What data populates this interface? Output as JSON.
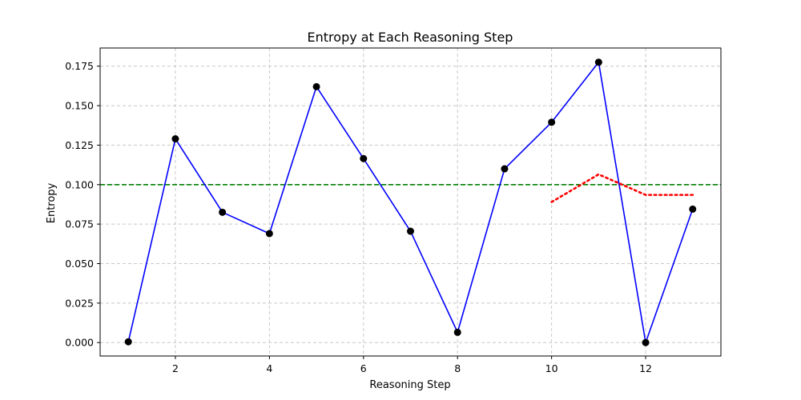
{
  "chart_data": {
    "type": "line",
    "title": "Entropy at Each Reasoning Step",
    "xlabel": "Reasoning Step",
    "ylabel": "Entropy",
    "xlim": [
      0.4,
      13.6
    ],
    "ylim": [
      -0.0085,
      0.1865
    ],
    "x_ticks": [
      2,
      4,
      6,
      8,
      10,
      12
    ],
    "y_ticks": [
      0.0,
      0.025,
      0.05,
      0.075,
      0.1,
      0.125,
      0.15,
      0.175
    ],
    "x_tick_labels": [
      "2",
      "4",
      "6",
      "8",
      "10",
      "12"
    ],
    "y_tick_labels": [
      "0.000",
      "0.025",
      "0.050",
      "0.075",
      "0.100",
      "0.125",
      "0.150",
      "0.175"
    ],
    "grid": true,
    "series": [
      {
        "style": "solid line with circle markers",
        "color": "#0000ff",
        "marker_color": "#000000",
        "x": [
          1,
          2,
          3,
          4,
          5,
          6,
          7,
          8,
          9,
          10,
          11,
          12,
          13
        ],
        "values": [
          0.0005,
          0.129,
          0.0825,
          0.069,
          0.162,
          0.1165,
          0.0705,
          0.0065,
          0.11,
          0.1395,
          0.1775,
          0.0,
          0.0845
        ]
      },
      {
        "style": "dotted line",
        "color": "#ff0000",
        "x": [
          10,
          11,
          12,
          13
        ],
        "values": [
          0.089,
          0.1065,
          0.0935,
          0.0935
        ]
      }
    ],
    "reference_lines": [
      {
        "orientation": "horizontal",
        "y": 0.1,
        "color": "#008000",
        "style": "dashed"
      }
    ]
  }
}
